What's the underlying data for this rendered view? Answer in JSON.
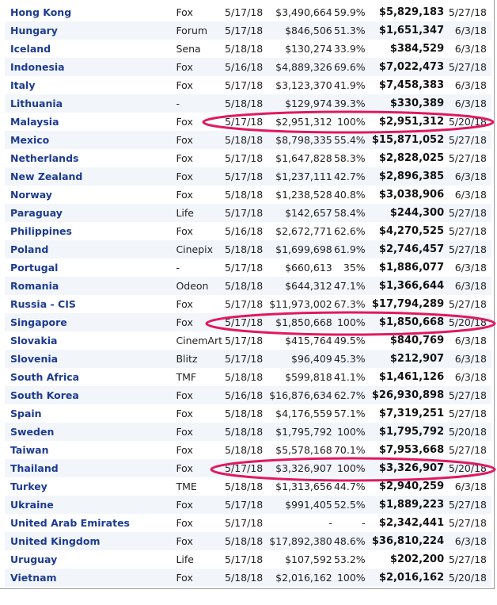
{
  "rows": [
    {
      "country": "Hong Kong",
      "distributor": "Fox",
      "release": "5/17/18",
      "opening": "$3,490,664",
      "pct": "59.9%",
      "total": "$5,829,183",
      "as_of": "5/27/18"
    },
    {
      "country": "Hungary",
      "distributor": "Forum",
      "release": "5/17/18",
      "opening": "$846,506",
      "pct": "51.3%",
      "total": "$1,651,347",
      "as_of": "6/3/18"
    },
    {
      "country": "Iceland",
      "distributor": "Sena",
      "release": "5/18/18",
      "opening": "$130,274",
      "pct": "33.9%",
      "total": "$384,529",
      "as_of": "6/3/18"
    },
    {
      "country": "Indonesia",
      "distributor": "Fox",
      "release": "5/16/18",
      "opening": "$4,889,326",
      "pct": "69.6%",
      "total": "$7,022,473",
      "as_of": "5/27/18"
    },
    {
      "country": "Italy",
      "distributor": "Fox",
      "release": "5/17/18",
      "opening": "$3,123,370",
      "pct": "41.9%",
      "total": "$7,458,383",
      "as_of": "6/3/18"
    },
    {
      "country": "Lithuania",
      "distributor": "-",
      "release": "5/18/18",
      "opening": "$129,974",
      "pct": "39.3%",
      "total": "$330,389",
      "as_of": "6/3/18"
    },
    {
      "country": "Malaysia",
      "distributor": "Fox",
      "release": "5/17/18",
      "opening": "$2,951,312",
      "pct": "100%",
      "total": "$2,951,312",
      "as_of": "5/20/18"
    },
    {
      "country": "Mexico",
      "distributor": "Fox",
      "release": "5/18/18",
      "opening": "$8,798,335",
      "pct": "55.4%",
      "total": "$15,871,052",
      "as_of": "5/27/18"
    },
    {
      "country": "Netherlands",
      "distributor": "Fox",
      "release": "5/17/18",
      "opening": "$1,647,828",
      "pct": "58.3%",
      "total": "$2,828,025",
      "as_of": "5/27/18"
    },
    {
      "country": "New Zealand",
      "distributor": "Fox",
      "release": "5/17/18",
      "opening": "$1,237,111",
      "pct": "42.7%",
      "total": "$2,896,385",
      "as_of": "6/3/18"
    },
    {
      "country": "Norway",
      "distributor": "Fox",
      "release": "5/18/18",
      "opening": "$1,238,528",
      "pct": "40.8%",
      "total": "$3,038,906",
      "as_of": "6/3/18"
    },
    {
      "country": "Paraguay",
      "distributor": "Life",
      "release": "5/17/18",
      "opening": "$142,657",
      "pct": "58.4%",
      "total": "$244,300",
      "as_of": "5/27/18"
    },
    {
      "country": "Philippines",
      "distributor": "Fox",
      "release": "5/16/18",
      "opening": "$2,672,771",
      "pct": "62.6%",
      "total": "$4,270,525",
      "as_of": "5/27/18"
    },
    {
      "country": "Poland",
      "distributor": "Cinepix",
      "release": "5/18/18",
      "opening": "$1,699,698",
      "pct": "61.9%",
      "total": "$2,746,457",
      "as_of": "5/27/18"
    },
    {
      "country": "Portugal",
      "distributor": "-",
      "release": "5/17/18",
      "opening": "$660,613",
      "pct": "35%",
      "total": "$1,886,077",
      "as_of": "6/3/18"
    },
    {
      "country": "Romania",
      "distributor": "Odeon",
      "release": "5/18/18",
      "opening": "$644,312",
      "pct": "47.1%",
      "total": "$1,366,644",
      "as_of": "6/3/18"
    },
    {
      "country": "Russia - CIS",
      "distributor": "Fox",
      "release": "5/17/18",
      "opening": "$11,973,002",
      "pct": "67.3%",
      "total": "$17,794,289",
      "as_of": "5/27/18"
    },
    {
      "country": "Singapore",
      "distributor": "Fox",
      "release": "5/17/18",
      "opening": "$1,850,668",
      "pct": "100%",
      "total": "$1,850,668",
      "as_of": "5/20/18"
    },
    {
      "country": "Slovakia",
      "distributor": "CinemArt",
      "release": "5/17/18",
      "opening": "$415,764",
      "pct": "49.5%",
      "total": "$840,769",
      "as_of": "6/3/18"
    },
    {
      "country": "Slovenia",
      "distributor": "Blitz",
      "release": "5/17/18",
      "opening": "$96,409",
      "pct": "45.3%",
      "total": "$212,907",
      "as_of": "6/3/18"
    },
    {
      "country": "South Africa",
      "distributor": "TMF",
      "release": "5/18/18",
      "opening": "$599,818",
      "pct": "41.1%",
      "total": "$1,461,126",
      "as_of": "6/3/18"
    },
    {
      "country": "South Korea",
      "distributor": "Fox",
      "release": "5/16/18",
      "opening": "$16,876,634",
      "pct": "62.7%",
      "total": "$26,930,898",
      "as_of": "5/27/18"
    },
    {
      "country": "Spain",
      "distributor": "Fox",
      "release": "5/18/18",
      "opening": "$4,176,559",
      "pct": "57.1%",
      "total": "$7,319,251",
      "as_of": "5/27/18"
    },
    {
      "country": "Sweden",
      "distributor": "Fox",
      "release": "5/18/18",
      "opening": "$1,795,792",
      "pct": "100%",
      "total": "$1,795,792",
      "as_of": "5/20/18"
    },
    {
      "country": "Taiwan",
      "distributor": "Fox",
      "release": "5/18/18",
      "opening": "$5,578,168",
      "pct": "70.1%",
      "total": "$7,953,668",
      "as_of": "5/27/18"
    },
    {
      "country": "Thailand",
      "distributor": "Fox",
      "release": "5/17/18",
      "opening": "$3,326,907",
      "pct": "100%",
      "total": "$3,326,907",
      "as_of": "5/20/18"
    },
    {
      "country": "Turkey",
      "distributor": "TME",
      "release": "5/18/18",
      "opening": "$1,313,656",
      "pct": "44.7%",
      "total": "$2,940,259",
      "as_of": "6/3/18"
    },
    {
      "country": "Ukraine",
      "distributor": "Fox",
      "release": "5/17/18",
      "opening": "$991,405",
      "pct": "52.5%",
      "total": "$1,889,223",
      "as_of": "5/27/18"
    },
    {
      "country": "United Arab Emirates",
      "distributor": "Fox",
      "release": "5/17/18",
      "opening": "-",
      "pct": "-",
      "total": "$2,342,441",
      "as_of": "5/27/18"
    },
    {
      "country": "United Kingdom",
      "distributor": "Fox",
      "release": "5/18/18",
      "opening": "$17,892,380",
      "pct": "48.6%",
      "total": "$36,810,224",
      "as_of": "6/3/18"
    },
    {
      "country": "Uruguay",
      "distributor": "Life",
      "release": "5/17/18",
      "opening": "$107,592",
      "pct": "53.2%",
      "total": "$202,200",
      "as_of": "5/27/18"
    },
    {
      "country": "Vietnam",
      "distributor": "Fox",
      "release": "5/18/18",
      "opening": "$2,016,162",
      "pct": "100%",
      "total": "$2,016,162",
      "as_of": "5/20/18"
    }
  ],
  "highlights": {
    "color": "#e0195f",
    "rows": [
      "Malaysia",
      "Singapore",
      "Thailand"
    ]
  }
}
